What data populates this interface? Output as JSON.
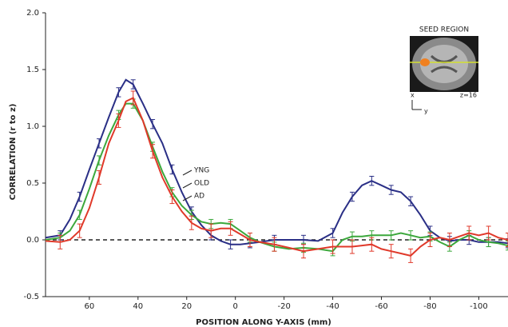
{
  "chart_data": {
    "type": "line",
    "y_label": "CORRELATION (r to z)",
    "x_label": "POSITION ALONG Y-AXIS (mm)",
    "xlim": [
      78,
      -112
    ],
    "ylim": [
      -0.5,
      2.0
    ],
    "xticks": [
      60,
      40,
      20,
      0,
      -20,
      -40,
      -60,
      -80,
      -100
    ],
    "yticks": [
      {
        "value": 2.0,
        "label": "2.0"
      },
      {
        "value": 1.5,
        "label": "1.5"
      },
      {
        "value": 1.0,
        "label": "1.0"
      },
      {
        "value": 0.5,
        "label": "0.5"
      },
      {
        "value": 0,
        "label": "0.0"
      },
      {
        "value": -0.5,
        "label": "-0.5"
      }
    ],
    "zero_line": true,
    "x": [
      78,
      72,
      68,
      64,
      60,
      56,
      52,
      48,
      45,
      42,
      38,
      34,
      30,
      26,
      22,
      18,
      14,
      10,
      6,
      2,
      -2,
      -6,
      -10,
      -16,
      -22,
      -28,
      -34,
      -40,
      -44,
      -48,
      -52,
      -56,
      -60,
      -64,
      -68,
      -72,
      -76,
      -80,
      -84,
      -88,
      -92,
      -96,
      -100,
      -104,
      -108,
      -112
    ],
    "series": [
      {
        "name": "YNG",
        "color": "#2a2f86",
        "values": [
          0.02,
          0.04,
          0.18,
          0.38,
          0.62,
          0.85,
          1.08,
          1.3,
          1.41,
          1.37,
          1.2,
          1.02,
          0.85,
          0.62,
          0.42,
          0.25,
          0.13,
          0.04,
          -0.01,
          -0.04,
          -0.04,
          -0.03,
          -0.02,
          0.0,
          0.0,
          0.0,
          -0.01,
          0.06,
          0.24,
          0.38,
          0.48,
          0.52,
          0.48,
          0.44,
          0.42,
          0.34,
          0.22,
          0.08,
          0.02,
          -0.01,
          0.0,
          0.0,
          -0.02,
          -0.02,
          -0.02,
          -0.03
        ],
        "errors": [
          null,
          0.04,
          null,
          0.04,
          null,
          0.04,
          null,
          0.04,
          null,
          0.04,
          null,
          0.04,
          null,
          0.04,
          null,
          0.04,
          null,
          0.04,
          null,
          0.04,
          null,
          0.04,
          null,
          0.04,
          null,
          0.04,
          null,
          0.04,
          null,
          0.04,
          null,
          0.04,
          null,
          0.04,
          null,
          0.04,
          null,
          0.04,
          null,
          0.04,
          null,
          0.04,
          null,
          0.04,
          null,
          0.04
        ]
      },
      {
        "name": "OLD",
        "color": "#3ca83c",
        "values": [
          0.0,
          0.02,
          0.08,
          0.22,
          0.45,
          0.7,
          0.92,
          1.1,
          1.2,
          1.2,
          1.05,
          0.82,
          0.6,
          0.42,
          0.3,
          0.22,
          0.16,
          0.14,
          0.15,
          0.14,
          0.08,
          0.02,
          -0.02,
          -0.06,
          -0.08,
          -0.07,
          -0.08,
          -0.1,
          0.0,
          0.03,
          0.03,
          0.04,
          0.04,
          0.04,
          0.06,
          0.04,
          0.02,
          0.03,
          -0.02,
          -0.06,
          0.0,
          0.04,
          0.0,
          -0.02,
          -0.03,
          -0.05
        ],
        "errors": [
          null,
          0.04,
          null,
          0.04,
          null,
          0.04,
          null,
          0.04,
          null,
          0.04,
          null,
          0.04,
          null,
          0.04,
          null,
          0.04,
          null,
          0.04,
          null,
          0.04,
          null,
          0.04,
          null,
          0.04,
          null,
          0.04,
          null,
          0.04,
          null,
          0.04,
          null,
          0.04,
          null,
          0.04,
          null,
          0.04,
          null,
          0.04,
          null,
          0.04,
          null,
          0.04,
          null,
          0.04,
          null,
          0.04
        ]
      },
      {
        "name": "AD",
        "color": "#e0392a",
        "values": [
          -0.01,
          -0.02,
          0.0,
          0.08,
          0.28,
          0.55,
          0.85,
          1.05,
          1.22,
          1.25,
          1.05,
          0.78,
          0.55,
          0.38,
          0.25,
          0.15,
          0.1,
          0.08,
          0.1,
          0.1,
          0.05,
          0.0,
          -0.02,
          -0.04,
          -0.07,
          -0.1,
          -0.08,
          -0.06,
          -0.06,
          -0.06,
          -0.05,
          -0.04,
          -0.08,
          -0.1,
          -0.12,
          -0.14,
          -0.06,
          0.0,
          0.02,
          0.0,
          0.03,
          0.06,
          0.04,
          0.06,
          0.02,
          0.0
        ],
        "errors": [
          null,
          0.06,
          null,
          0.06,
          null,
          0.06,
          null,
          0.06,
          null,
          0.06,
          null,
          0.06,
          null,
          0.06,
          null,
          0.06,
          null,
          0.06,
          null,
          0.06,
          null,
          0.06,
          null,
          0.06,
          null,
          0.06,
          null,
          0.06,
          null,
          0.06,
          null,
          0.06,
          null,
          0.06,
          null,
          0.06,
          null,
          0.06,
          null,
          0.06,
          null,
          0.06,
          null,
          0.06,
          null,
          0.06
        ]
      }
    ],
    "inset": {
      "title": "SEED REGION",
      "x_label": "x",
      "y_label": "y",
      "z_label": "z=16"
    }
  }
}
